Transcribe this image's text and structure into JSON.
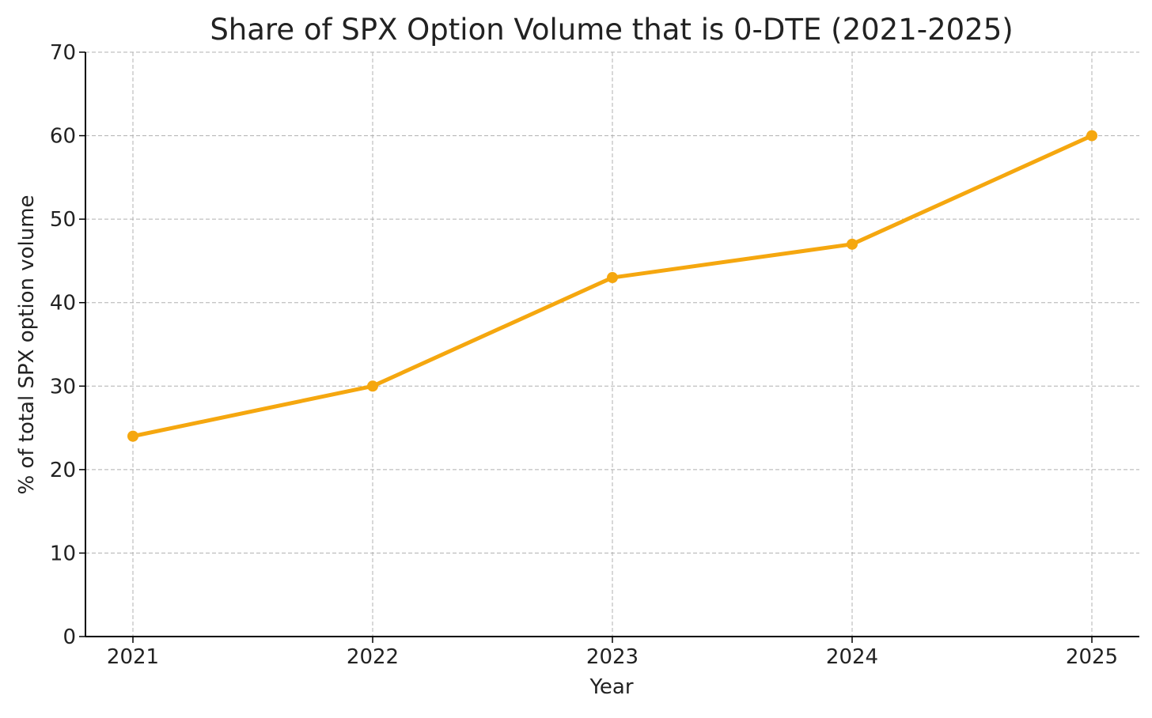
{
  "chart_data": {
    "type": "line",
    "title": "Share of SPX Option Volume that is 0-DTE (2021-2025)",
    "xlabel": "Year",
    "ylabel": "% of total SPX option volume",
    "categories": [
      "2021",
      "2022",
      "2023",
      "2024",
      "2025"
    ],
    "series": [
      {
        "values": [
          24,
          30,
          43,
          47,
          60
        ],
        "color": "#F5A70F",
        "marker": "circle"
      }
    ],
    "ylim": [
      0,
      70
    ],
    "yticks": [
      0,
      10,
      20,
      30,
      40,
      50,
      60,
      70
    ],
    "grid": true,
    "grid_style": "dashed",
    "grid_color": "#b0b0b0",
    "axis_color": "#000000",
    "text_color": "#222222"
  }
}
